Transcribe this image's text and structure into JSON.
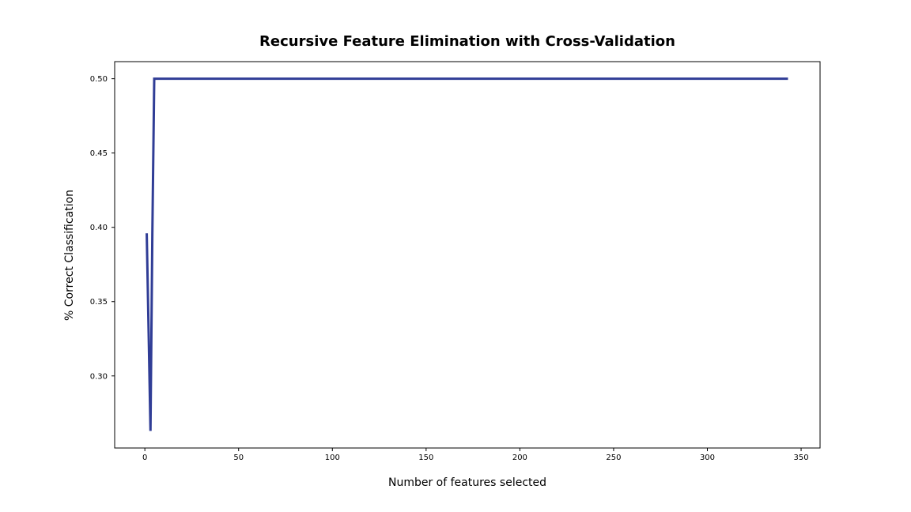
{
  "chart_data": {
    "type": "line",
    "title": "Recursive Feature Elimination with Cross-Validation",
    "xlabel": "Number of features selected",
    "ylabel": "% Correct Classification",
    "xlim": [
      -16.1,
      360.1
    ],
    "ylim": [
      0.2515,
      0.5115
    ],
    "xticks": [
      0,
      50,
      100,
      150,
      200,
      250,
      300,
      350
    ],
    "yticks": [
      0.3,
      0.35,
      0.4,
      0.45,
      0.5
    ],
    "xtick_labels": [
      "0",
      "50",
      "100",
      "150",
      "200",
      "250",
      "300",
      "350"
    ],
    "ytick_labels": [
      "0.30",
      "0.35",
      "0.40",
      "0.45",
      "0.50"
    ],
    "grid": false,
    "series": [
      {
        "color": "#303d96",
        "x": [
          1,
          2,
          3,
          4,
          5,
          343
        ],
        "y": [
          0.396,
          0.33,
          0.263,
          0.396,
          0.5,
          0.5
        ]
      }
    ]
  }
}
